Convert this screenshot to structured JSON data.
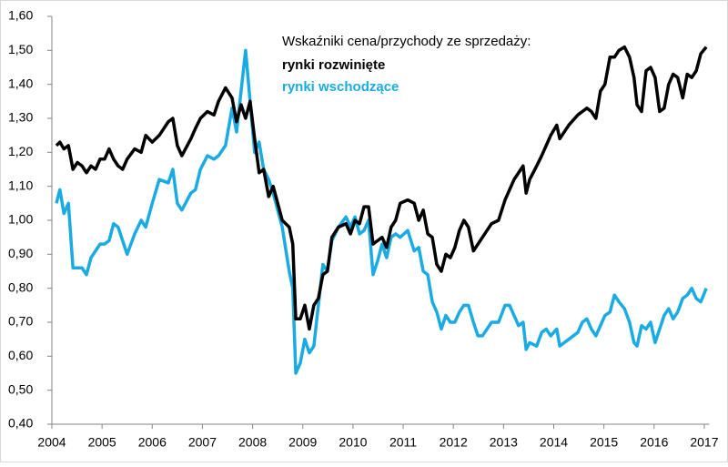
{
  "chart_data": {
    "type": "line",
    "title": "Wskaźniki cena/przychody  ze sprzedaży:",
    "x": [
      2004.09,
      2004.16,
      2004.24,
      2004.33,
      2004.42,
      2004.51,
      2004.6,
      2004.69,
      2004.78,
      2004.87,
      2004.96,
      2005.05,
      2005.14,
      2005.23,
      2005.32,
      2005.41,
      2005.5,
      2005.65,
      2005.78,
      2005.87,
      2006.0,
      2006.14,
      2006.32,
      2006.41,
      2006.5,
      2006.59,
      2006.77,
      2006.86,
      2006.96,
      2007.1,
      2007.23,
      2007.32,
      2007.46,
      2007.59,
      2007.68,
      2007.77,
      2007.86,
      2007.95,
      2008.04,
      2008.13,
      2008.22,
      2008.32,
      2008.41,
      2008.59,
      2008.73,
      2008.8,
      2008.86,
      2008.95,
      2009.04,
      2009.13,
      2009.22,
      2009.31,
      2009.4,
      2009.49,
      2009.58,
      2009.71,
      2009.86,
      2009.95,
      2010.04,
      2010.13,
      2010.22,
      2010.31,
      2010.4,
      2010.49,
      2010.58,
      2010.67,
      2010.76,
      2010.85,
      2010.94,
      2011.09,
      2011.22,
      2011.31,
      2011.4,
      2011.49,
      2011.58,
      2011.67,
      2011.76,
      2011.85,
      2011.94,
      2012.03,
      2012.12,
      2012.21,
      2012.3,
      2012.4,
      2012.49,
      2012.58,
      2012.67,
      2012.76,
      2012.9,
      2013.03,
      2013.12,
      2013.21,
      2013.3,
      2013.39,
      2013.45,
      2013.52,
      2013.66,
      2013.76,
      2013.85,
      2013.94,
      2014.06,
      2014.12,
      2014.21,
      2014.3,
      2014.48,
      2014.57,
      2014.66,
      2014.75,
      2014.84,
      2014.93,
      2015.02,
      2015.12,
      2015.21,
      2015.3,
      2015.41,
      2015.51,
      2015.6,
      2015.66,
      2015.75,
      2015.84,
      2015.93,
      2016.02,
      2016.11,
      2016.2,
      2016.29,
      2016.38,
      2016.47,
      2016.57,
      2016.66,
      2016.75,
      2016.84,
      2016.93,
      2017.04
    ],
    "series": [
      {
        "name": "rynki rozwinięte",
        "color": "#000000",
        "values": [
          1.22,
          1.23,
          1.21,
          1.22,
          1.15,
          1.17,
          1.16,
          1.14,
          1.16,
          1.15,
          1.18,
          1.18,
          1.21,
          1.18,
          1.16,
          1.15,
          1.18,
          1.21,
          1.2,
          1.25,
          1.23,
          1.25,
          1.29,
          1.3,
          1.22,
          1.19,
          1.24,
          1.27,
          1.3,
          1.32,
          1.31,
          1.35,
          1.39,
          1.36,
          1.29,
          1.34,
          1.3,
          1.35,
          1.24,
          1.14,
          1.15,
          1.07,
          1.1,
          1.0,
          0.98,
          0.93,
          0.71,
          0.71,
          0.75,
          0.68,
          0.75,
          0.77,
          0.84,
          0.85,
          0.95,
          0.98,
          0.99,
          0.96,
          1.0,
          0.99,
          1.04,
          1.04,
          0.93,
          0.94,
          0.95,
          0.92,
          0.98,
          1.0,
          1.05,
          1.06,
          1.05,
          1.0,
          1.03,
          0.96,
          0.95,
          0.87,
          0.85,
          0.9,
          0.89,
          0.92,
          0.97,
          1.0,
          0.98,
          0.91,
          0.93,
          0.95,
          0.97,
          0.99,
          1.0,
          1.06,
          1.09,
          1.12,
          1.14,
          1.16,
          1.08,
          1.12,
          1.16,
          1.19,
          1.22,
          1.25,
          1.28,
          1.24,
          1.26,
          1.28,
          1.31,
          1.32,
          1.33,
          1.32,
          1.3,
          1.38,
          1.4,
          1.48,
          1.48,
          1.5,
          1.51,
          1.48,
          1.42,
          1.34,
          1.32,
          1.44,
          1.45,
          1.42,
          1.32,
          1.33,
          1.4,
          1.43,
          1.42,
          1.36,
          1.43,
          1.42,
          1.44,
          1.49,
          1.51
        ]
      },
      {
        "name": "rynki wschodzące",
        "color": "#1aabe2",
        "values": [
          1.05,
          1.09,
          1.02,
          1.05,
          0.86,
          0.86,
          0.86,
          0.84,
          0.89,
          0.91,
          0.93,
          0.93,
          0.94,
          0.99,
          0.98,
          0.94,
          0.9,
          0.96,
          1.0,
          0.98,
          1.05,
          1.12,
          1.11,
          1.15,
          1.05,
          1.03,
          1.08,
          1.09,
          1.15,
          1.19,
          1.18,
          1.19,
          1.22,
          1.33,
          1.26,
          1.38,
          1.5,
          1.35,
          1.2,
          1.23,
          1.15,
          1.12,
          1.08,
          0.98,
          0.85,
          0.8,
          0.55,
          0.58,
          0.65,
          0.61,
          0.63,
          0.75,
          0.87,
          0.85,
          0.94,
          0.98,
          1.01,
          0.98,
          1.01,
          0.96,
          0.97,
          1.0,
          0.84,
          0.88,
          0.93,
          0.89,
          0.95,
          0.96,
          0.95,
          0.97,
          0.91,
          0.92,
          0.85,
          0.84,
          0.76,
          0.73,
          0.68,
          0.72,
          0.7,
          0.7,
          0.73,
          0.75,
          0.75,
          0.7,
          0.66,
          0.66,
          0.68,
          0.7,
          0.7,
          0.75,
          0.75,
          0.72,
          0.69,
          0.7,
          0.62,
          0.64,
          0.63,
          0.67,
          0.68,
          0.66,
          0.68,
          0.63,
          0.64,
          0.65,
          0.67,
          0.7,
          0.71,
          0.68,
          0.66,
          0.69,
          0.72,
          0.73,
          0.78,
          0.76,
          0.74,
          0.7,
          0.64,
          0.63,
          0.69,
          0.68,
          0.7,
          0.64,
          0.68,
          0.72,
          0.74,
          0.71,
          0.73,
          0.77,
          0.78,
          0.8,
          0.77,
          0.76,
          0.8
        ]
      }
    ],
    "xlim": [
      2004,
      2017.1
    ],
    "xticks": [
      2004,
      2005,
      2006,
      2007,
      2008,
      2009,
      2010,
      2011,
      2012,
      2013,
      2014,
      2015,
      2016,
      2017
    ],
    "ylim": [
      0.4,
      1.6
    ],
    "yticks": [
      {
        "value": 0.4,
        "label": "0,40"
      },
      {
        "value": 0.5,
        "label": "0,50"
      },
      {
        "value": 0.6,
        "label": "0,60"
      },
      {
        "value": 0.7,
        "label": "0,70"
      },
      {
        "value": 0.8,
        "label": "0,80"
      },
      {
        "value": 0.9,
        "label": "0,90"
      },
      {
        "value": 1.0,
        "label": "1,00"
      },
      {
        "value": 1.1,
        "label": "1,10"
      },
      {
        "value": 1.2,
        "label": "1,20"
      },
      {
        "value": 1.3,
        "label": "1,30"
      },
      {
        "value": 1.4,
        "label": "1,40"
      },
      {
        "value": 1.5,
        "label": "1,50"
      },
      {
        "value": 1.6,
        "label": "1,60"
      }
    ],
    "grid": false
  }
}
